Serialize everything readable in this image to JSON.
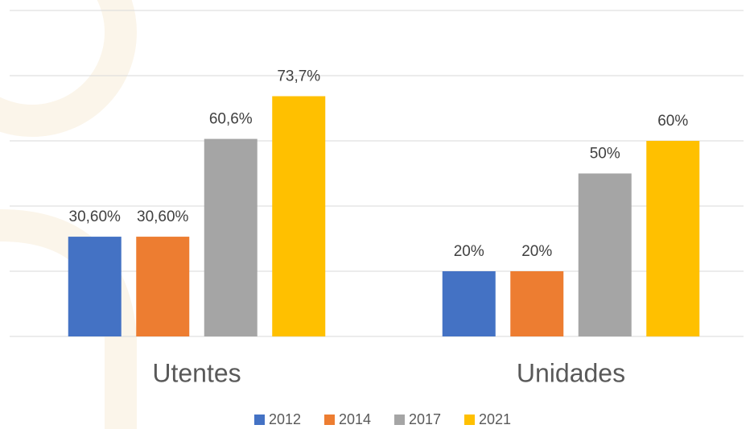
{
  "chart_data": {
    "type": "bar",
    "categories": [
      "Utentes",
      "Unidades"
    ],
    "series": [
      {
        "name": "2012",
        "color": "#4472c4",
        "values": [
          30.6,
          20
        ],
        "value_labels": [
          "30,60%",
          "20%"
        ]
      },
      {
        "name": "2014",
        "color": "#ed7d31",
        "values": [
          30.6,
          20
        ],
        "value_labels": [
          "30,60%",
          "20%"
        ]
      },
      {
        "name": "2017",
        "color": "#a5a5a5",
        "values": [
          60.6,
          50
        ],
        "value_labels": [
          "60,6%",
          "50%"
        ]
      },
      {
        "name": "2021",
        "color": "#ffc000",
        "values": [
          73.7,
          60
        ],
        "value_labels": [
          "73,7%",
          "60%"
        ]
      }
    ],
    "ylim": [
      0,
      100
    ],
    "yticks": [
      0,
      20,
      40,
      60,
      80,
      100
    ],
    "grid": true,
    "legend": "bottom"
  }
}
